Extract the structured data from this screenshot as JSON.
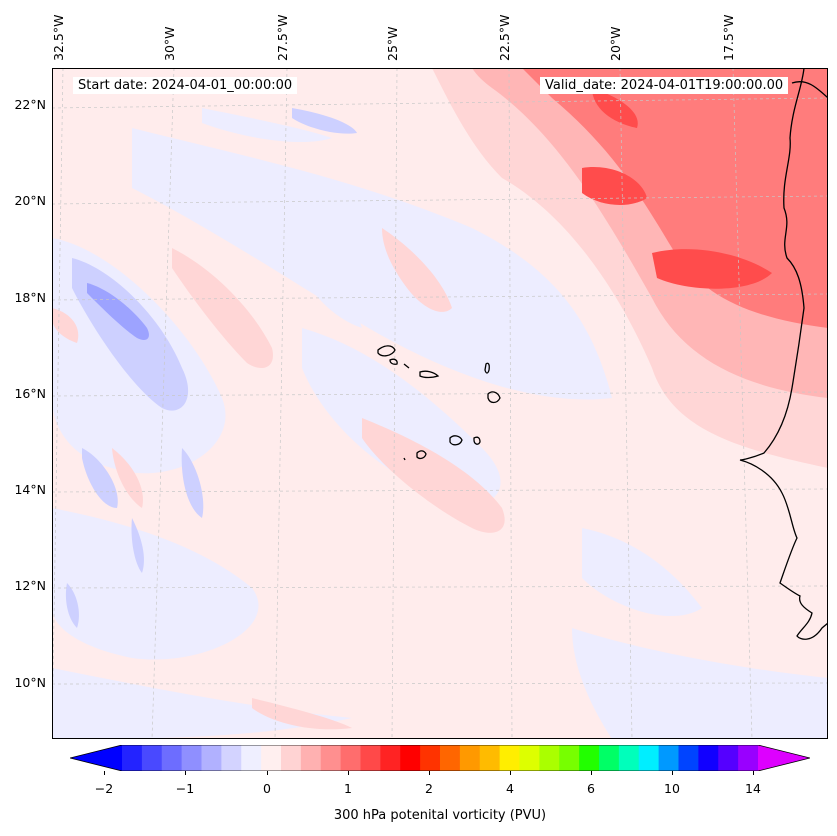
{
  "map": {
    "start_date_label": "Start date: 2024-04-01_00:00:00",
    "valid_date_label": "Valid_date: 2024-04-01T19:00:00.00",
    "lon_labels": [
      "32.5°W",
      "30°W",
      "27.5°W",
      "25°W",
      "22.5°W",
      "20°W",
      "17.5°W"
    ],
    "lat_labels": [
      "22°N",
      "20°N",
      "18°N",
      "16°N",
      "14°N",
      "12°N",
      "10°N"
    ],
    "colorbar": {
      "title": "300 hPa potenital vorticity (PVU)",
      "tick_labels": [
        "−2",
        "−1",
        "0",
        "1",
        "2",
        "4",
        "6",
        "10",
        "14"
      ],
      "colors": [
        "#0000ff",
        "#2323ff",
        "#4949ff",
        "#6d6dff",
        "#8f8fff",
        "#b1b1ff",
        "#d3d3ff",
        "#efefff",
        "#ffefef",
        "#ffd3d3",
        "#ffb1b1",
        "#ff8f8f",
        "#ff6d6d",
        "#ff4949",
        "#ff2323",
        "#ff0000",
        "#ff3300",
        "#ff6600",
        "#ff9900",
        "#ffbb00",
        "#ffee00",
        "#ddff00",
        "#aaff00",
        "#77ff00",
        "#22ff00",
        "#00ff66",
        "#00ffbb",
        "#00eeff",
        "#0099ff",
        "#0044ff",
        "#1100ff",
        "#5500ff",
        "#9900ff",
        "#dd00ff"
      ]
    },
    "field_colors": {
      "background": "#ffecec",
      "neg_light": "#ededff",
      "neg_mid": "#cdd0ff",
      "neg_strong": "#9da3ff",
      "pos_light": "#ffd6d6",
      "pos_mid": "#ffb6b6",
      "pos_strong": "#ff7c7c",
      "pos_max": "#ff4c4c"
    }
  }
}
